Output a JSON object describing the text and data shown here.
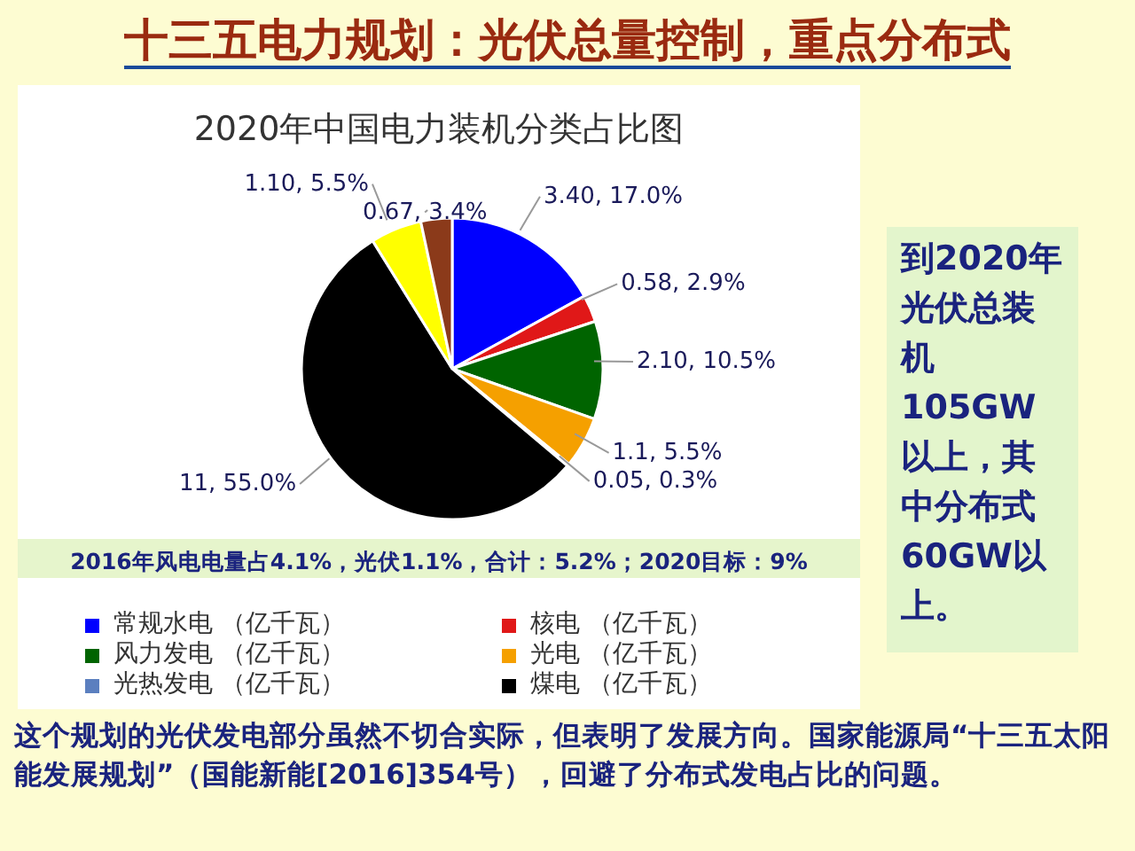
{
  "chart_data": {
    "type": "pie",
    "title": "十三五电力规划：光伏总量控制，重点分布式",
    "subtitle": "2020年中国电力装机分类占比图",
    "categories": [
      "常规水电 （亿千瓦）",
      "核电 （亿千瓦）",
      "风力发电 （亿千瓦）",
      "光电 （亿千瓦）",
      "光热发电 （亿千瓦）",
      "煤电 （亿千瓦）",
      null,
      null
    ],
    "values": [
      3.4,
      0.58,
      2.1,
      1.1,
      0.05,
      11,
      1.1,
      0.67
    ],
    "value_labels": [
      "3.40, 17.0%",
      "0.58, 2.9%",
      "2.10, 10.5%",
      "1.1, 5.5%",
      "0.05, 0.3%",
      "11, 55.0%",
      "1.10, 5.5%",
      "0.67, 3.4%"
    ],
    "colors": [
      "#0000ff",
      "#e01818",
      "#006400",
      "#f5a000",
      "#5b7fbf",
      "#000000",
      "#ffff00",
      "#8b3a1a"
    ],
    "legend": "bottom",
    "annotations": [
      "2016年风电电量占4.1%，光伏1.1%，合计：5.2%；2020目标：9%",
      "到2020年光伏总装机105GW以上，其中分布式60GW以上。",
      "这个规划的光伏发电部分虽然不切合实际，但表明了发展方向。国家能源局“十三五太阳能发展规划”（国能新能[2016]354号），回避了分布式发电占比的问题。"
    ]
  }
}
